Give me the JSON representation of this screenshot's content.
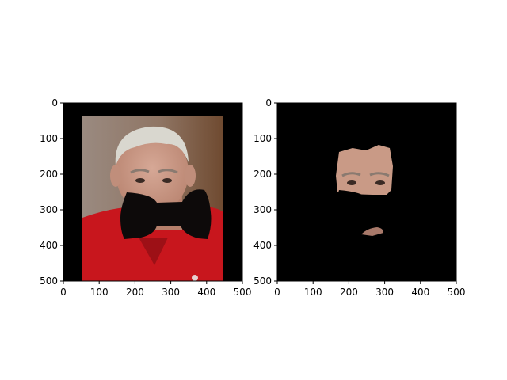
{
  "chart_data": [
    {
      "type": "image",
      "xlim": [
        0,
        500
      ],
      "ylim": [
        500,
        0
      ],
      "xticks": [
        0,
        100,
        200,
        300,
        400,
        500
      ],
      "yticks": [
        0,
        100,
        200,
        300,
        400,
        500
      ],
      "xtick_labels": [
        "0",
        "100",
        "200",
        "300",
        "400",
        "500"
      ],
      "ytick_labels": [
        "0",
        "100",
        "200",
        "300",
        "400",
        "500"
      ],
      "content": "photo of older man in red shirt with black bow-tie shaped occlusion over lower face, on black background"
    },
    {
      "type": "image",
      "xlim": [
        0,
        500
      ],
      "ylim": [
        500,
        0
      ],
      "xticks": [
        0,
        100,
        200,
        300,
        400,
        500
      ],
      "yticks": [
        0,
        100,
        200,
        300,
        400,
        500
      ],
      "xtick_labels": [
        "0",
        "100",
        "200",
        "300",
        "400",
        "500"
      ],
      "ytick_labels": [
        "0",
        "100",
        "200",
        "300",
        "400",
        "500"
      ],
      "content": "segmented skin region of the face (forehead and eyes) on black background"
    }
  ],
  "colors": {
    "background": "#000000",
    "shirt": "#c8161d",
    "skin": "#c99a86",
    "hair": "#d9d7cf",
    "wall": "#8a6a58",
    "occlusion": "#0d0a0a"
  }
}
